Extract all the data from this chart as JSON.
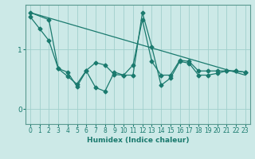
{
  "xlabel": "Humidex (Indice chaleur)",
  "bg_color": "#cce9e7",
  "grid_color": "#a0cfcc",
  "line_color": "#1a7a6e",
  "spine_color": "#5a9a90",
  "xlim": [
    -0.5,
    23.5
  ],
  "ylim": [
    -0.25,
    1.75
  ],
  "yticks": [
    0,
    1
  ],
  "xticks": [
    0,
    1,
    2,
    3,
    4,
    5,
    6,
    7,
    8,
    9,
    10,
    11,
    12,
    13,
    14,
    15,
    16,
    17,
    18,
    19,
    20,
    21,
    22,
    23
  ],
  "series1_x": [
    0,
    1,
    2,
    3,
    4,
    5,
    6,
    7,
    8,
    9,
    10,
    11,
    12,
    13,
    14,
    15,
    16,
    17,
    18,
    19,
    20,
    21,
    22,
    23
  ],
  "series1_y": [
    1.55,
    1.35,
    1.15,
    0.68,
    0.55,
    0.42,
    0.65,
    0.78,
    0.74,
    0.58,
    0.57,
    0.74,
    1.5,
    0.8,
    0.57,
    0.57,
    0.82,
    0.8,
    0.64,
    0.64,
    0.64,
    0.64,
    0.64,
    0.62
  ],
  "series2_x": [
    0,
    2,
    3,
    4,
    5,
    6,
    7,
    8,
    9,
    10,
    11,
    12,
    13,
    14,
    15,
    16,
    17,
    18,
    19,
    20,
    21,
    22,
    23
  ],
  "series2_y": [
    1.62,
    1.5,
    0.68,
    0.62,
    0.38,
    0.64,
    0.36,
    0.3,
    0.62,
    0.57,
    0.57,
    1.62,
    1.05,
    0.4,
    0.52,
    0.8,
    0.77,
    0.57,
    0.57,
    0.6,
    0.64,
    0.64,
    0.62
  ],
  "trend_x": [
    0,
    23
  ],
  "trend_y": [
    1.62,
    0.57
  ],
  "figsize": [
    3.2,
    2.0
  ],
  "dpi": 100
}
